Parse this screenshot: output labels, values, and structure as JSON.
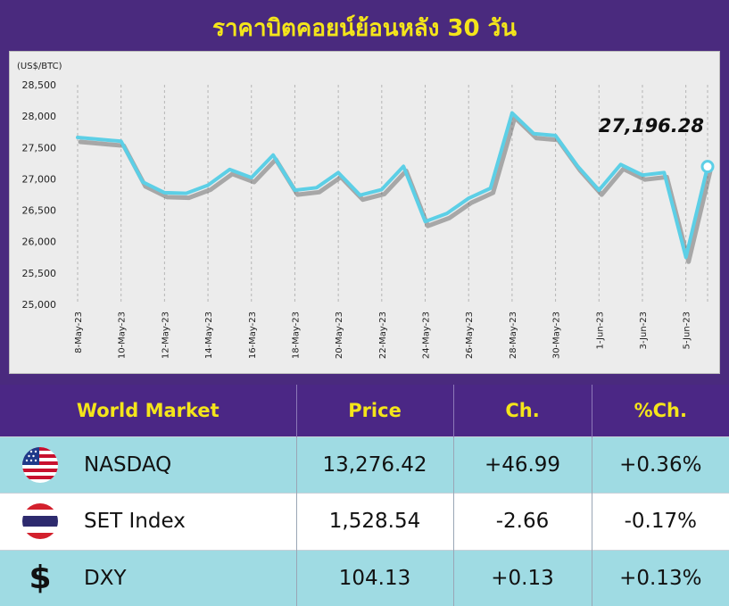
{
  "header": {
    "title": "ราคาบิตคอยน์ย้อนหลัง 30 วัน"
  },
  "chart_data": {
    "type": "line",
    "title": "ราคาบิตคอยน์ย้อนหลัง 30 วัน",
    "ylabel": "(US$/BTC)",
    "xlabel": "",
    "ylim": [
      25000,
      28500
    ],
    "y_ticks": [
      "25,000",
      "25,500",
      "26,000",
      "26,500",
      "27,000",
      "27,500",
      "28,000",
      "28,500"
    ],
    "x_tick_labels": [
      "8-May-23",
      "10-May-23",
      "12-May-23",
      "14-May-23",
      "16-May-23",
      "18-May-23",
      "20-May-23",
      "22-May-23",
      "24-May-23",
      "26-May-23",
      "28-May-23",
      "30-May-23",
      "1-Jun-23",
      "3-Jun-23",
      "5-Jun-23"
    ],
    "x": [
      "8-May-23",
      "9-May-23",
      "10-May-23",
      "11-May-23",
      "12-May-23",
      "13-May-23",
      "14-May-23",
      "15-May-23",
      "16-May-23",
      "17-May-23",
      "18-May-23",
      "19-May-23",
      "20-May-23",
      "21-May-23",
      "22-May-23",
      "23-May-23",
      "24-May-23",
      "25-May-23",
      "26-May-23",
      "27-May-23",
      "28-May-23",
      "29-May-23",
      "30-May-23",
      "31-May-23",
      "1-Jun-23",
      "2-Jun-23",
      "3-Jun-23",
      "4-Jun-23",
      "5-Jun-23",
      "6-Jun-23"
    ],
    "series": [
      {
        "values": [
          27660,
          27630,
          27600,
          26950,
          26780,
          26770,
          26900,
          27150,
          27020,
          27380,
          26820,
          26860,
          27100,
          26740,
          26830,
          27200,
          26320,
          26450,
          26690,
          26850,
          28050,
          27720,
          27690,
          27210,
          26820,
          27230,
          27060,
          27100,
          25750,
          27196.28
        ]
      }
    ],
    "annotation": "27,196.28",
    "grid": "vertical dashed",
    "line_color": "#5ccfe6"
  },
  "table": {
    "headers": {
      "market": "World Market",
      "price": "Price",
      "change": "Ch.",
      "pct": "%Ch."
    },
    "rows": [
      {
        "icon": "us-flag-icon",
        "name": "NASDAQ",
        "price": "13,276.42",
        "change": "+46.99",
        "pct": "+0.36%"
      },
      {
        "icon": "thai-flag-icon",
        "name": "SET Index",
        "price": "1,528.54",
        "change": "-2.66",
        "pct": "-0.17%"
      },
      {
        "icon": "dollar-icon",
        "name": "DXY",
        "price": "104.13",
        "change": "+0.13",
        "pct": "+0.13%"
      }
    ]
  }
}
